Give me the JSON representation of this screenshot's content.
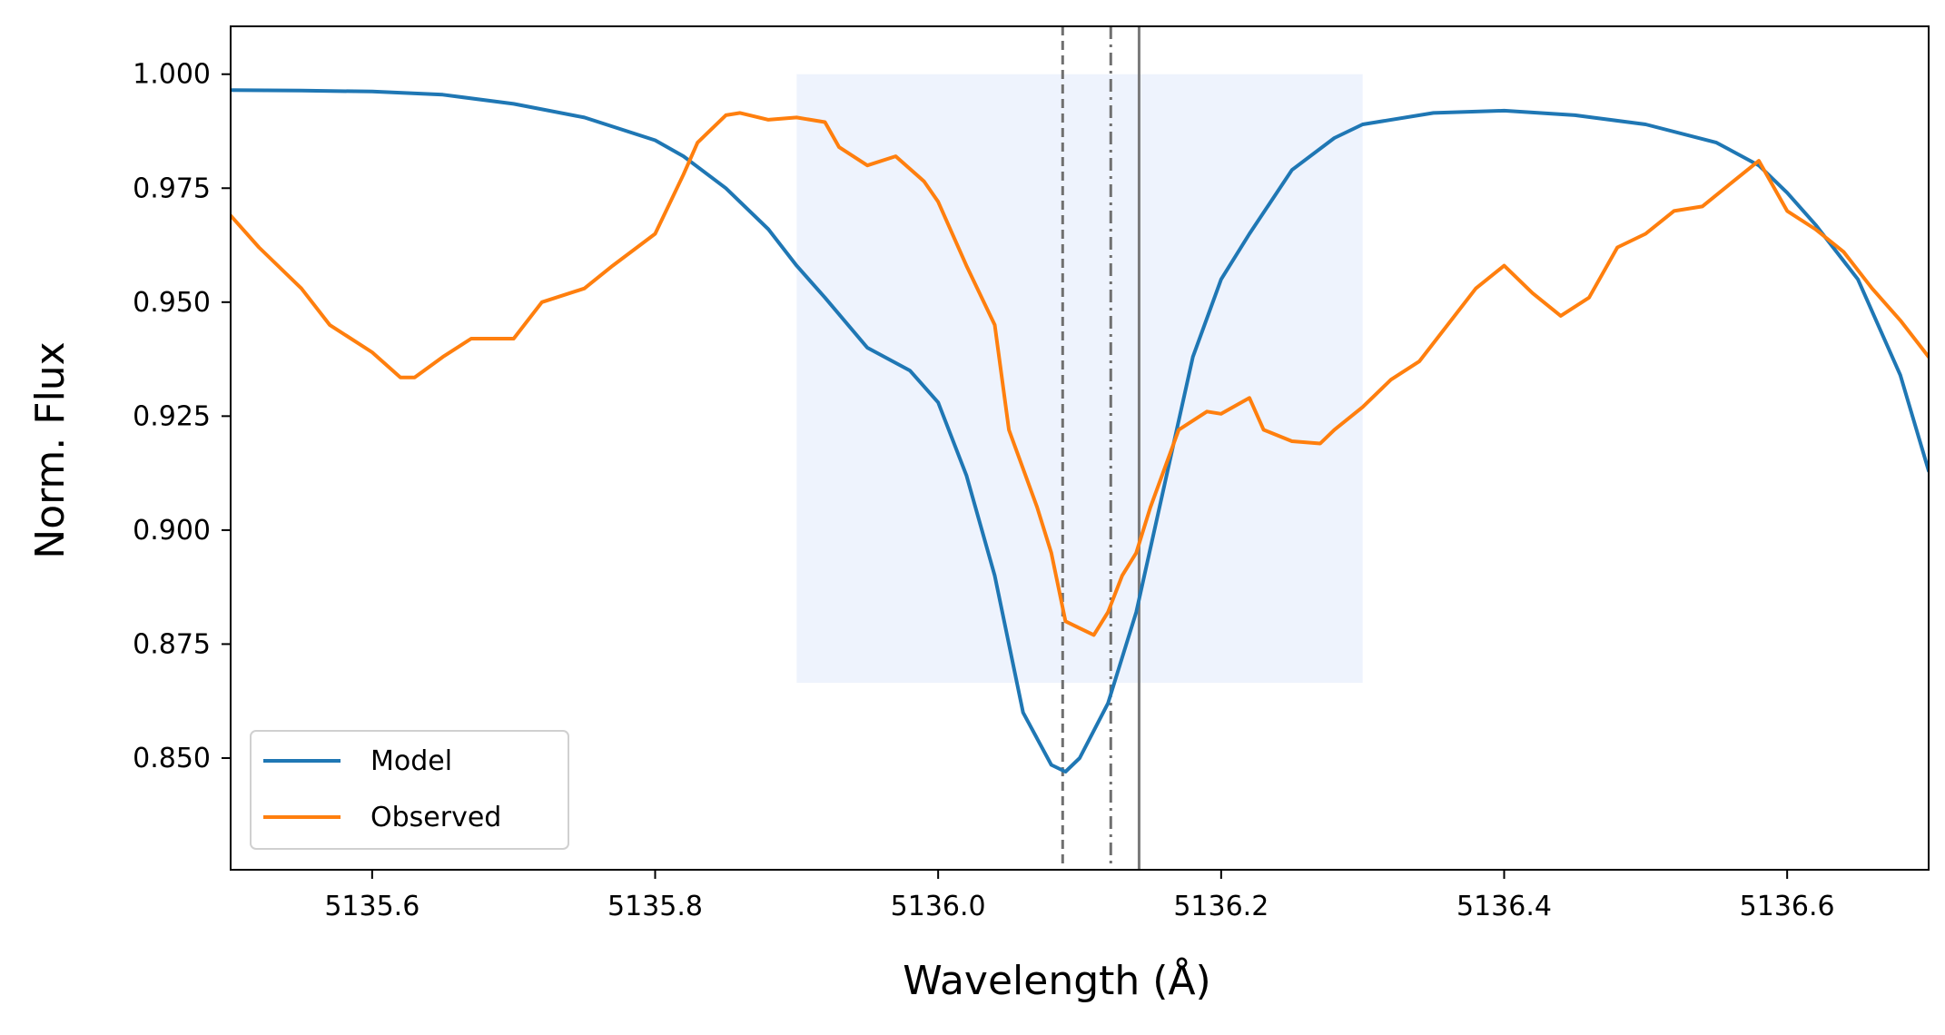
{
  "chart_data": {
    "type": "line",
    "title": "",
    "xlabel": "Wavelength (Å)",
    "ylabel": "Norm. Flux",
    "xlim": [
      5135.5,
      5136.7
    ],
    "ylim": [
      0.8255,
      1.0105
    ],
    "x_ticks": [
      {
        "value": 5135.6,
        "label": "5135.6"
      },
      {
        "value": 5135.8,
        "label": "5135.8"
      },
      {
        "value": 5136.0,
        "label": "5136.0"
      },
      {
        "value": 5136.2,
        "label": "5136.2"
      },
      {
        "value": 5136.4,
        "label": "5136.4"
      },
      {
        "value": 5136.6,
        "label": "5136.6"
      }
    ],
    "y_ticks": [
      {
        "value": 0.85,
        "label": "0.850"
      },
      {
        "value": 0.875,
        "label": "0.875"
      },
      {
        "value": 0.9,
        "label": "0.900"
      },
      {
        "value": 0.925,
        "label": "0.925"
      },
      {
        "value": 0.95,
        "label": "0.950"
      },
      {
        "value": 0.975,
        "label": "0.975"
      },
      {
        "value": 1.0,
        "label": "1.000"
      }
    ],
    "grid": false,
    "legend_position": "lower-left",
    "series": [
      {
        "name": "Model",
        "color": "#1f77b4",
        "points": [
          [
            5135.5,
            0.9965
          ],
          [
            5135.55,
            0.9964
          ],
          [
            5135.6,
            0.9962
          ],
          [
            5135.65,
            0.9955
          ],
          [
            5135.7,
            0.9935
          ],
          [
            5135.75,
            0.9905
          ],
          [
            5135.8,
            0.9855
          ],
          [
            5135.82,
            0.982
          ],
          [
            5135.85,
            0.975
          ],
          [
            5135.88,
            0.966
          ],
          [
            5135.9,
            0.958
          ],
          [
            5135.92,
            0.951
          ],
          [
            5135.95,
            0.94
          ],
          [
            5135.98,
            0.935
          ],
          [
            5136.0,
            0.928
          ],
          [
            5136.02,
            0.912
          ],
          [
            5136.04,
            0.89
          ],
          [
            5136.06,
            0.86
          ],
          [
            5136.08,
            0.8485
          ],
          [
            5136.09,
            0.847
          ],
          [
            5136.1,
            0.85
          ],
          [
            5136.12,
            0.862
          ],
          [
            5136.14,
            0.882
          ],
          [
            5136.16,
            0.91
          ],
          [
            5136.18,
            0.938
          ],
          [
            5136.2,
            0.955
          ],
          [
            5136.22,
            0.965
          ],
          [
            5136.25,
            0.979
          ],
          [
            5136.28,
            0.986
          ],
          [
            5136.3,
            0.989
          ],
          [
            5136.35,
            0.9915
          ],
          [
            5136.4,
            0.992
          ],
          [
            5136.45,
            0.991
          ],
          [
            5136.5,
            0.989
          ],
          [
            5136.55,
            0.985
          ],
          [
            5136.58,
            0.98
          ],
          [
            5136.6,
            0.974
          ],
          [
            5136.62,
            0.967
          ],
          [
            5136.65,
            0.955
          ],
          [
            5136.68,
            0.934
          ],
          [
            5136.7,
            0.913
          ]
        ]
      },
      {
        "name": "Observed",
        "color": "#ff7f0e",
        "points": [
          [
            5135.5,
            0.969
          ],
          [
            5135.52,
            0.962
          ],
          [
            5135.55,
            0.953
          ],
          [
            5135.57,
            0.945
          ],
          [
            5135.6,
            0.939
          ],
          [
            5135.62,
            0.9335
          ],
          [
            5135.63,
            0.9335
          ],
          [
            5135.65,
            0.938
          ],
          [
            5135.67,
            0.942
          ],
          [
            5135.7,
            0.942
          ],
          [
            5135.72,
            0.95
          ],
          [
            5135.75,
            0.953
          ],
          [
            5135.77,
            0.958
          ],
          [
            5135.8,
            0.965
          ],
          [
            5135.82,
            0.978
          ],
          [
            5135.83,
            0.985
          ],
          [
            5135.85,
            0.991
          ],
          [
            5135.86,
            0.9915
          ],
          [
            5135.88,
            0.99
          ],
          [
            5135.9,
            0.9905
          ],
          [
            5135.92,
            0.9895
          ],
          [
            5135.93,
            0.984
          ],
          [
            5135.95,
            0.98
          ],
          [
            5135.97,
            0.982
          ],
          [
            5135.99,
            0.9765
          ],
          [
            5136.0,
            0.972
          ],
          [
            5136.02,
            0.958
          ],
          [
            5136.04,
            0.945
          ],
          [
            5136.05,
            0.922
          ],
          [
            5136.07,
            0.905
          ],
          [
            5136.08,
            0.895
          ],
          [
            5136.09,
            0.88
          ],
          [
            5136.1,
            0.8785
          ],
          [
            5136.11,
            0.877
          ],
          [
            5136.12,
            0.882
          ],
          [
            5136.13,
            0.89
          ],
          [
            5136.14,
            0.895
          ],
          [
            5136.15,
            0.905
          ],
          [
            5136.17,
            0.922
          ],
          [
            5136.19,
            0.926
          ],
          [
            5136.2,
            0.9255
          ],
          [
            5136.22,
            0.929
          ],
          [
            5136.23,
            0.922
          ],
          [
            5136.25,
            0.9195
          ],
          [
            5136.27,
            0.919
          ],
          [
            5136.28,
            0.922
          ],
          [
            5136.3,
            0.927
          ],
          [
            5136.32,
            0.933
          ],
          [
            5136.34,
            0.937
          ],
          [
            5136.36,
            0.945
          ],
          [
            5136.38,
            0.953
          ],
          [
            5136.4,
            0.958
          ],
          [
            5136.42,
            0.952
          ],
          [
            5136.44,
            0.947
          ],
          [
            5136.46,
            0.951
          ],
          [
            5136.48,
            0.962
          ],
          [
            5136.5,
            0.965
          ],
          [
            5136.52,
            0.97
          ],
          [
            5136.54,
            0.971
          ],
          [
            5136.56,
            0.976
          ],
          [
            5136.58,
            0.981
          ],
          [
            5136.6,
            0.97
          ],
          [
            5136.62,
            0.966
          ],
          [
            5136.64,
            0.961
          ],
          [
            5136.66,
            0.953
          ],
          [
            5136.68,
            0.946
          ],
          [
            5136.7,
            0.938
          ]
        ]
      }
    ],
    "shaded_region": {
      "x": [
        5135.9,
        5136.3
      ],
      "y": [
        0.8665,
        1.0
      ],
      "color": "#eef3fd"
    },
    "vertical_lines": [
      {
        "x": 5136.088,
        "style": "dashed",
        "color": "#707070"
      },
      {
        "x": 5136.122,
        "style": "dashdot",
        "color": "#707070"
      },
      {
        "x": 5136.142,
        "style": "solid",
        "color": "#7a7a7a"
      }
    ]
  }
}
